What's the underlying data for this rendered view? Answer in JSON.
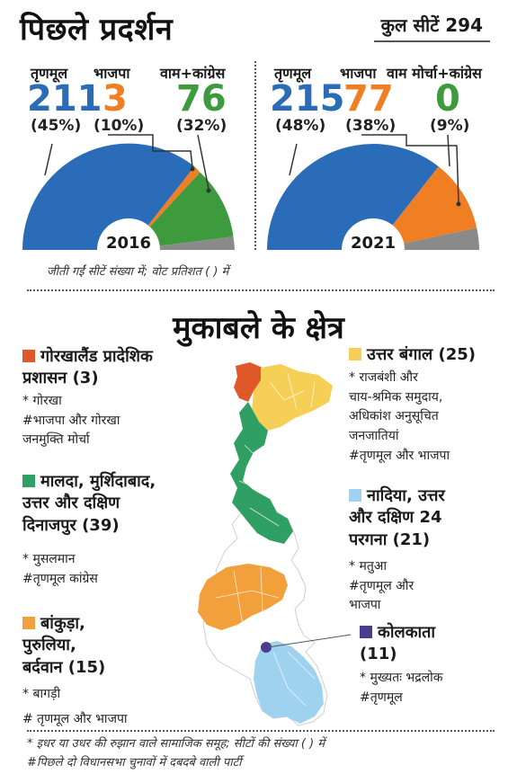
{
  "header": {
    "title": "पिछले प्रदर्शन",
    "total_seats": "कुल सीटें 294"
  },
  "election_2016": {
    "year": "2016",
    "parties": [
      {
        "label": "तृणमूल",
        "seats": "211",
        "pct": "(45%)",
        "color": "#2a6cb8"
      },
      {
        "label": "भाजपा",
        "seats": "3",
        "pct": "(10%)",
        "color": "#f07f23"
      },
      {
        "label": "वाम+कांग्रेस",
        "seats": "76",
        "pct": "(32%)",
        "color": "#3d9a3d"
      }
    ]
  },
  "election_2021": {
    "year": "2021",
    "parties": [
      {
        "label": "तृणमूल",
        "seats": "215",
        "pct": "(48%)",
        "color": "#2a6cb8"
      },
      {
        "label": "भाजपा",
        "seats": "77",
        "pct": "(38%)",
        "color": "#f07f23"
      },
      {
        "label": "वाम मोर्चा+कांग्रेस",
        "seats": "0",
        "pct": "(9%)",
        "color": "#3d9a3d"
      }
    ]
  },
  "note_top": "जीती गईं सीटें संख्या में; वोट प्रतिशत ( ) में",
  "section_title": "मुकाबले के क्षेत्र",
  "regions": {
    "gorkha": {
      "title_line1": "गोरखालैंड प्रादेशिक",
      "title_line2": "प्रशासन (3)",
      "line1": "* गोरखा",
      "line2": "#भाजपा और गोरखा",
      "line3": "जनमुक्ति मोर्चा",
      "color": "#e0572a"
    },
    "malda": {
      "title_line1": "मालदा, मुर्शिदाबाद,",
      "title_line2": "उत्तर और दक्षिण",
      "title_line3": "दिनाजपुर (39)",
      "line1": "* मुसलमान",
      "line2": "#तृणमूल कांग्रेस",
      "color": "#2f9f63"
    },
    "bankura": {
      "title_line1": "बांकुड़ा,",
      "title_line2": "पुरुलिया,",
      "title_line3": "बर्दवान (15)",
      "line1": "* बागड़ी",
      "line2": "# तृणमूल और भाजपा",
      "color": "#f2a03c"
    },
    "north_bengal": {
      "title_line1": "उत्तर बंगाल (25)",
      "line1": "* राजबंशी और",
      "line2": "चाय-श्रमिक समुदाय,",
      "line3": "अधिकांश अनुसूचित",
      "line4": "जनजातियां",
      "line5": "#तृणमूल और भाजपा",
      "color": "#f6cf57"
    },
    "nadia": {
      "title_line1": "नादिया, उत्तर",
      "title_line2": "और दक्षिण 24",
      "title_line3": "परगना (21)",
      "line1": "* मतुआ",
      "line2": "#तृणमूल और",
      "line3": "भाजपा",
      "color": "#9fd2ef"
    },
    "kolkata": {
      "title_line1": "कोलकाता",
      "title_line2": "(11)",
      "line1": "* मुख्यतः भद्रलोक",
      "line2": "#तृणमूल",
      "color": "#4a3d8f"
    }
  },
  "bottom_notes": {
    "line1": "* इधर या उधर की रुझान वाले सामाजिक समूह; सीटों की संख्या ( ) में",
    "line2": "#पिछले दो विधानसभा चुनावों में दबदबे वाली पार्टी"
  }
}
